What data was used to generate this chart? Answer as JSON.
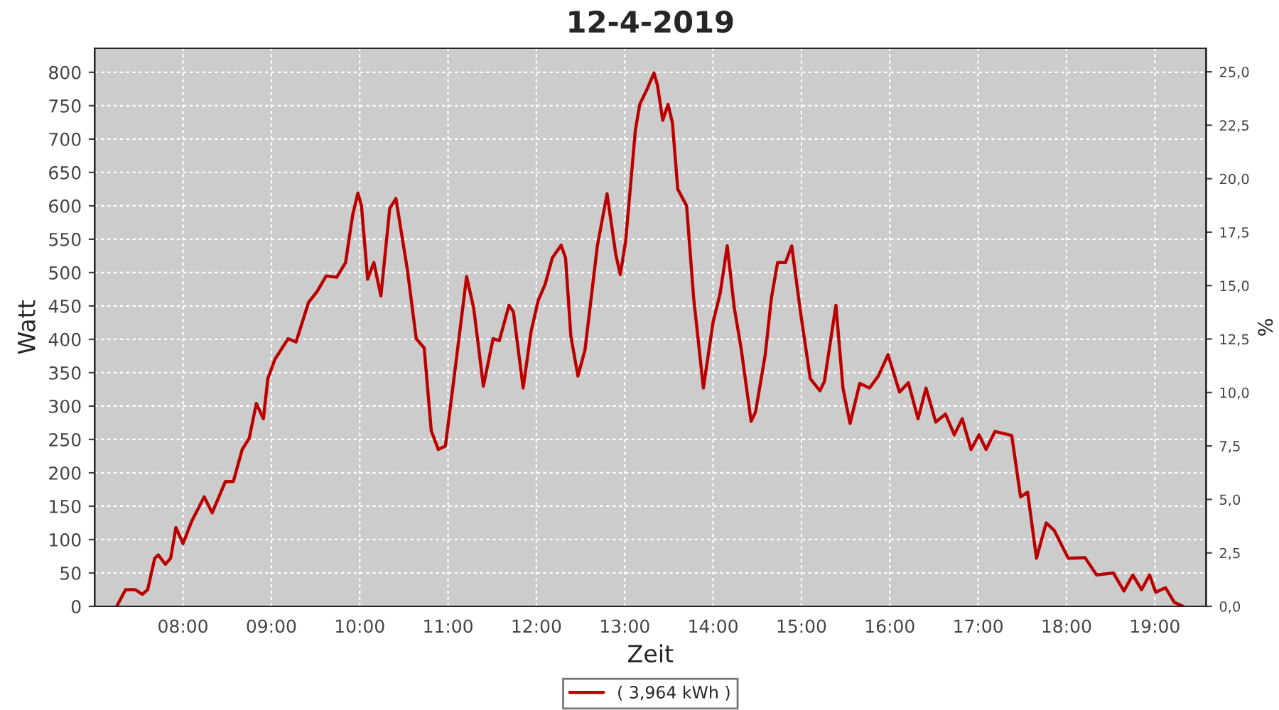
{
  "chart_data": {
    "type": "line",
    "title": "12-4-2019",
    "xlabel": "Zeit",
    "ylabel": "Watt",
    "y2label": "%",
    "xlim": [
      7.0,
      19.58
    ],
    "xticks": [
      {
        "value": 8,
        "label": "08:00"
      },
      {
        "value": 9,
        "label": "09:00"
      },
      {
        "value": 10,
        "label": "10:00"
      },
      {
        "value": 11,
        "label": "11:00"
      },
      {
        "value": 12,
        "label": "12:00"
      },
      {
        "value": 13,
        "label": "13:00"
      },
      {
        "value": 14,
        "label": "14:00"
      },
      {
        "value": 15,
        "label": "15:00"
      },
      {
        "value": 16,
        "label": "16:00"
      },
      {
        "value": 17,
        "label": "17:00"
      },
      {
        "value": 18,
        "label": "18:00"
      },
      {
        "value": 19,
        "label": "19:00"
      }
    ],
    "ylim": [
      0,
      836
    ],
    "yticks": [
      0,
      50,
      100,
      150,
      200,
      250,
      300,
      350,
      400,
      450,
      500,
      550,
      600,
      650,
      700,
      750,
      800
    ],
    "y2lim": [
      0,
      26.1
    ],
    "y2ticks": [
      {
        "value": 0,
        "label": "0,0"
      },
      {
        "value": 2.5,
        "label": "2,5"
      },
      {
        "value": 5,
        "label": "5,0"
      },
      {
        "value": 7.5,
        "label": "7,5"
      },
      {
        "value": 10,
        "label": "10,0"
      },
      {
        "value": 12.5,
        "label": "12,5"
      },
      {
        "value": 15,
        "label": "15,0"
      },
      {
        "value": 17.5,
        "label": "17,5"
      },
      {
        "value": 20,
        "label": "20,0"
      },
      {
        "value": 22.5,
        "label": "22,5"
      },
      {
        "value": 25,
        "label": "25,0"
      }
    ],
    "grid": true,
    "legend": "bottom",
    "marker": "none",
    "line_style": "solid",
    "series": [
      {
        "name": "( 3,964 kWh )",
        "color": "#bb0000",
        "x": [
          7.25,
          7.35,
          7.46,
          7.54,
          7.6,
          7.68,
          7.72,
          7.8,
          7.86,
          7.92,
          8.0,
          8.1,
          8.24,
          8.33,
          8.48,
          8.57,
          8.67,
          8.75,
          8.83,
          8.91,
          8.96,
          9.04,
          9.19,
          9.28,
          9.42,
          9.52,
          9.62,
          9.74,
          9.84,
          9.92,
          9.98,
          10.02,
          10.09,
          10.16,
          10.24,
          10.34,
          10.41,
          10.54,
          10.64,
          10.73,
          10.81,
          10.89,
          10.97,
          11.08,
          11.21,
          11.29,
          11.4,
          11.51,
          11.58,
          11.69,
          11.74,
          11.85,
          11.94,
          12.02,
          12.1,
          12.18,
          12.28,
          12.33,
          12.39,
          12.47,
          12.55,
          12.69,
          12.8,
          12.9,
          12.95,
          13.01,
          13.12,
          13.17,
          13.25,
          13.33,
          13.37,
          13.43,
          13.49,
          13.54,
          13.6,
          13.7,
          13.78,
          13.89,
          14.0,
          14.08,
          14.16,
          14.24,
          14.32,
          14.43,
          14.48,
          14.59,
          14.66,
          14.73,
          14.82,
          14.89,
          14.99,
          15.1,
          15.21,
          15.26,
          15.39,
          15.47,
          15.55,
          15.66,
          15.77,
          15.87,
          15.98,
          16.11,
          16.21,
          16.32,
          16.41,
          16.52,
          16.63,
          16.73,
          16.82,
          16.92,
          17.01,
          17.09,
          17.19,
          17.38,
          17.48,
          17.56,
          17.66,
          17.77,
          17.86,
          18.02,
          18.21,
          18.34,
          18.53,
          18.65,
          18.75,
          18.85,
          18.94,
          19.01,
          19.12,
          19.22,
          19.32
        ],
        "values": [
          0,
          25,
          25,
          18,
          25,
          72,
          77,
          63,
          72,
          118,
          94,
          128,
          164,
          140,
          187,
          187,
          235,
          252,
          304,
          281,
          341,
          370,
          401,
          396,
          455,
          472,
          495,
          493,
          515,
          586,
          619,
          600,
          490,
          515,
          465,
          596,
          611,
          504,
          401,
          387,
          263,
          235,
          240,
          355,
          494,
          447,
          330,
          401,
          398,
          451,
          441,
          327,
          412,
          458,
          483,
          522,
          541,
          522,
          405,
          345,
          384,
          540,
          618,
          526,
          497,
          547,
          713,
          752,
          774,
          799,
          781,
          728,
          752,
          724,
          625,
          600,
          462,
          327,
          426,
          469,
          540,
          447,
          384,
          277,
          291,
          377,
          462,
          515,
          515,
          540,
          440,
          341,
          323,
          337,
          451,
          327,
          274,
          334,
          327,
          345,
          377,
          321,
          335,
          281,
          327,
          276,
          288,
          257,
          281,
          235,
          257,
          235,
          262,
          256,
          164,
          171,
          72,
          125,
          114,
          72,
          73,
          47,
          50,
          23,
          47,
          25,
          47,
          21,
          28,
          6,
          0
        ]
      }
    ]
  }
}
